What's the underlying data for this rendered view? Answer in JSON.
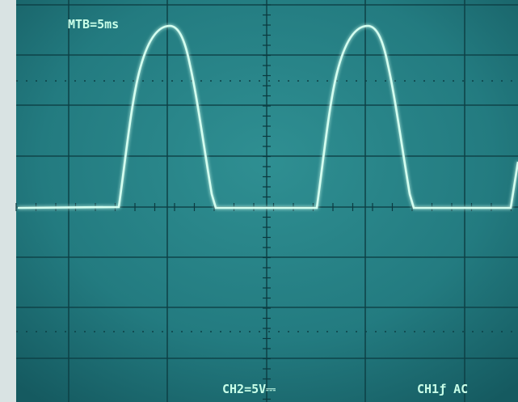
{
  "screen": {
    "timebase_label": "MTB=5ms",
    "channel2_label": "CH2=5V⎓",
    "channel1_label": "CH1ƒ AC"
  }
}
